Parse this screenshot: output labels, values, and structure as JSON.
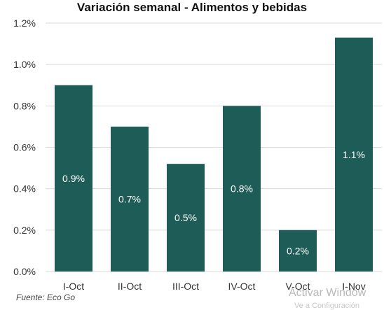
{
  "chart_data": {
    "type": "bar",
    "title": "Variación semanal - Alimentos y bebidas",
    "categories": [
      "I-Oct",
      "II-Oct",
      "III-Oct",
      "IV-Oct",
      "V-Oct",
      "I-Nov"
    ],
    "values": [
      0.9,
      0.7,
      0.52,
      0.8,
      0.2,
      1.13
    ],
    "data_labels": [
      "0.9%",
      "0.7%",
      "0.5%",
      "0.8%",
      "0.2%",
      "1.1%"
    ],
    "ylim": [
      0,
      1.2
    ],
    "yticks": [
      0,
      0.2,
      0.4,
      0.6,
      0.8,
      1.0,
      1.2
    ],
    "ytick_labels": [
      "0.0%",
      "0.2%",
      "0.4%",
      "0.6%",
      "0.8%",
      "1.0%",
      "1.2%"
    ],
    "grid": true,
    "bar_color": "#1e5c57"
  },
  "footer": {
    "source": "Fuente: Eco Go",
    "watermark": "Activar Window",
    "watermark_sub": "Ve a Configuración"
  }
}
